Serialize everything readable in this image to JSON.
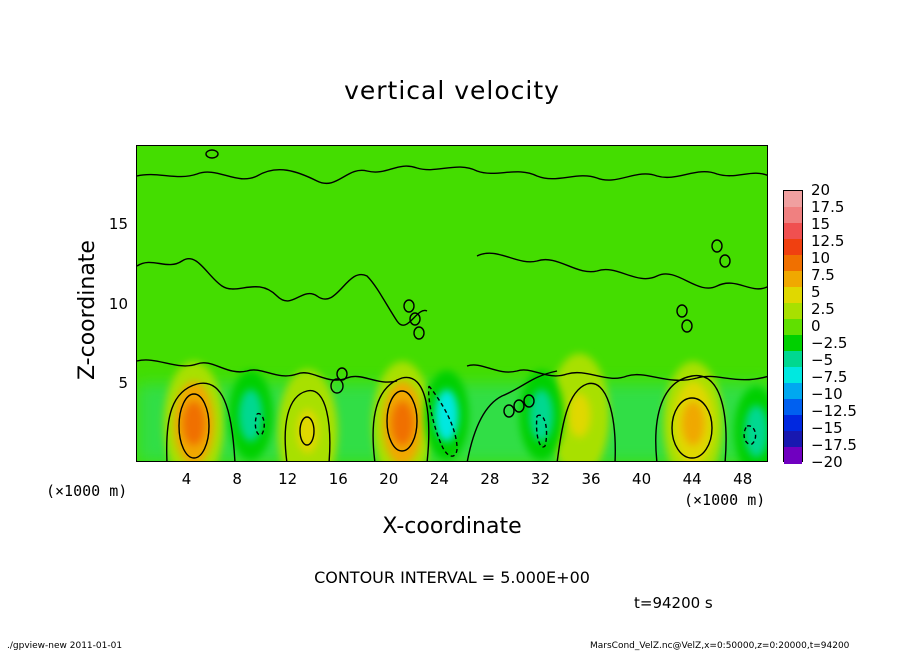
{
  "chart_data": {
    "type": "heatmap",
    "title": "vertical velocity",
    "xlabel": "X-coordinate",
    "ylabel": "Z-coordinate",
    "x_unit": "(×1000 m)",
    "xlim": [
      0,
      50
    ],
    "ylim": [
      0,
      20
    ],
    "x_ticks": [
      4,
      8,
      12,
      16,
      20,
      24,
      28,
      32,
      36,
      40,
      44,
      48
    ],
    "y_ticks": [
      5,
      10,
      15
    ],
    "contour_interval_label": "CONTOUR INTERVAL = 5.000E+00",
    "time_label": "t=94200 s",
    "colorbar": {
      "levels": [
        "20",
        "17.5",
        "15",
        "12.5",
        "10",
        "7.5",
        "5",
        "2.5",
        "0",
        "−2.5",
        "−5",
        "−7.5",
        "−10",
        "−12.5",
        "−15",
        "−17.5",
        "−20"
      ],
      "colors": [
        "#f0a0a0",
        "#f08080",
        "#f05050",
        "#f04010",
        "#f07000",
        "#f0a800",
        "#e0d800",
        "#a8e000",
        "#60e000",
        "#00d000",
        "#00d890",
        "#00e8e0",
        "#00a8f0",
        "#0060f0",
        "#0028e0",
        "#1818b0",
        "#7000c0"
      ]
    },
    "features": [
      {
        "type": "updraft",
        "x": 4.5,
        "z": 2.5,
        "value": 10
      },
      {
        "type": "updraft",
        "x": 21,
        "z": 2.5,
        "value": 10
      },
      {
        "type": "updraft",
        "x": 44,
        "z": 2.5,
        "value": 7.5
      },
      {
        "type": "updraft",
        "x": 13.5,
        "z": 2.0,
        "value": 5
      },
      {
        "type": "updraft",
        "x": 35,
        "z": 3.0,
        "value": 5
      },
      {
        "type": "downdraft",
        "x": 24.5,
        "z": 3.0,
        "value": -7.5
      },
      {
        "type": "downdraft",
        "x": 32,
        "z": 3.0,
        "value": -5
      },
      {
        "type": "downdraft",
        "x": 9,
        "z": 3.0,
        "value": -5
      },
      {
        "type": "downdraft",
        "x": 49,
        "z": 2.0,
        "value": -5
      }
    ]
  },
  "footer": {
    "left": "./gpview-new   2011-01-01",
    "right": "MarsCond_VelZ.nc@VelZ,x=0:50000,z=0:20000,t=94200"
  }
}
